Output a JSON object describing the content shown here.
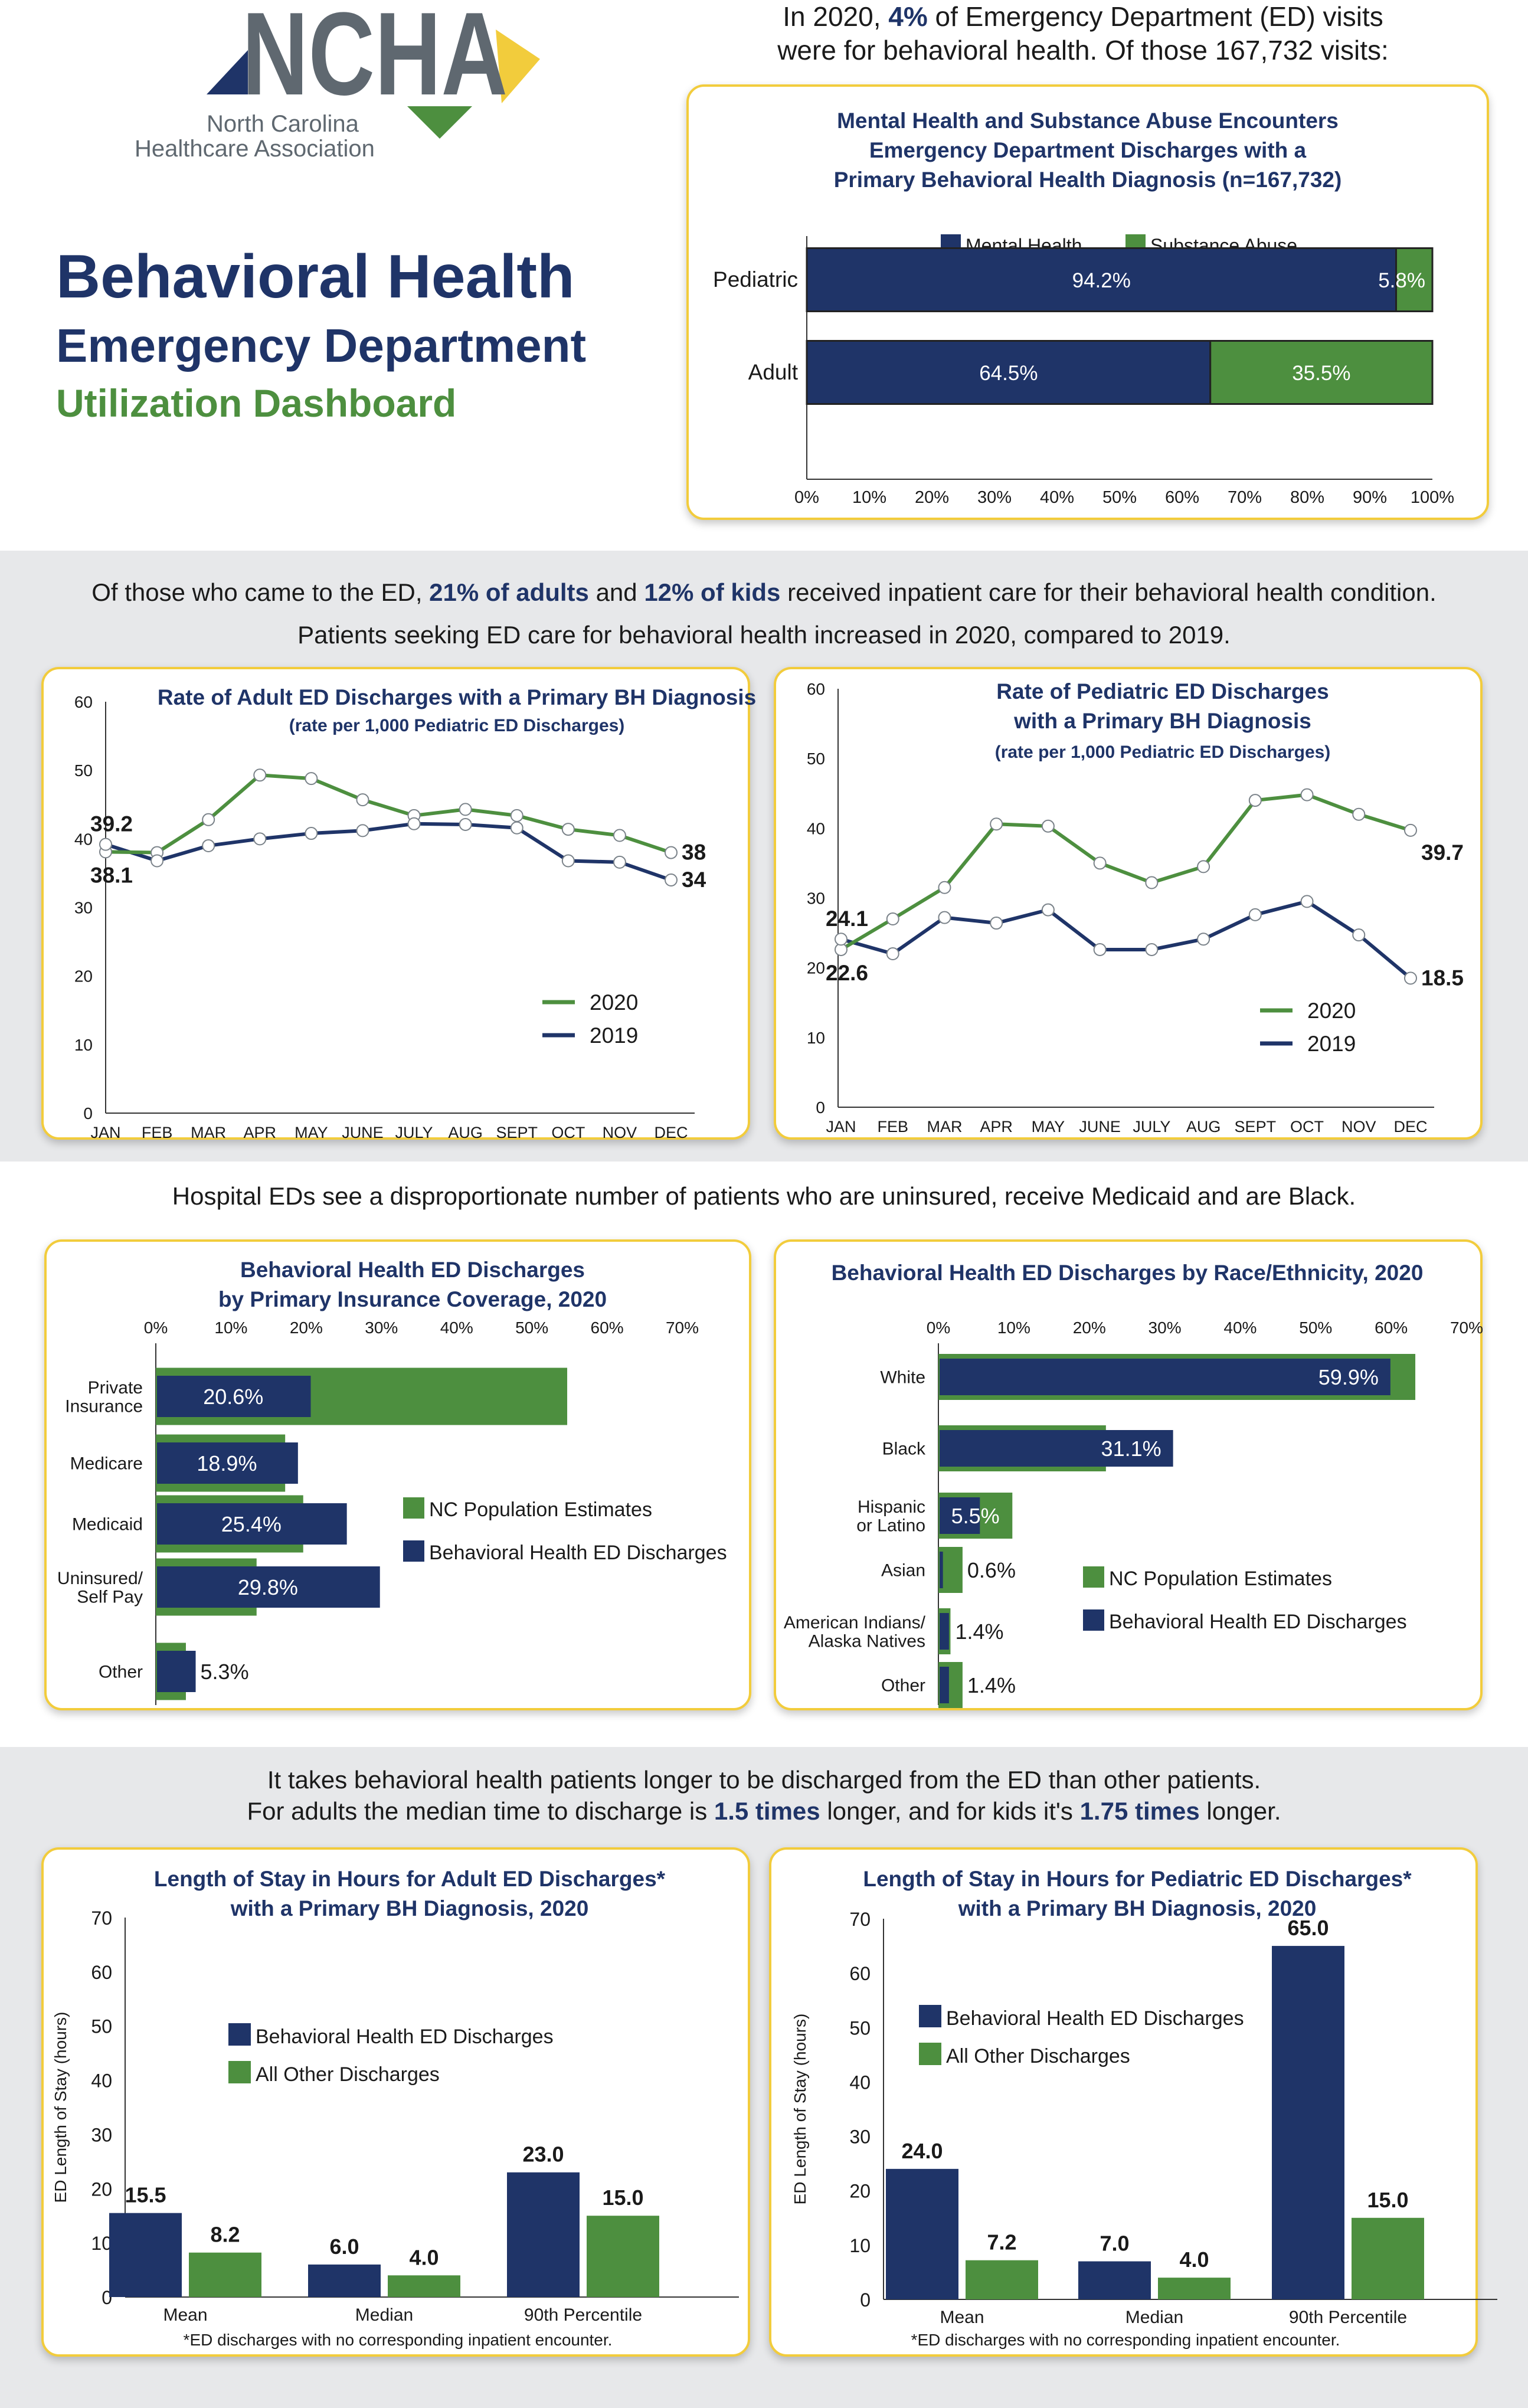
{
  "header": {
    "logo_text": "NCHA",
    "logo_sub1": "North Carolina",
    "logo_sub2": "Healthcare Association",
    "title1": "Behavioral Health",
    "title2": "Emergency Department",
    "title3": "Utilization Dashboard",
    "intro_pre": "In 2020,",
    "intro_pct": "4%",
    "intro_post": "of Emergency Department (ED) visits",
    "intro_line2": "were for behavioral health. Of those 167,732 visits:"
  },
  "section2": {
    "pre": "Of those who came to the ED,",
    "adults": "21% of adults",
    "mid": "and",
    "kids": "12% of kids",
    "post": "received inpatient care for their behavioral health condition.",
    "line2": "Patients seeking ED care for behavioral health increased in 2020, compared to 2019."
  },
  "section3": {
    "line1": "Hospital EDs see a disproportionate number of patients who are uninsured, receive Medicaid and are Black."
  },
  "section4": {
    "line1": "It takes behavioral health patients longer  to be discharged from the ED than other patients.",
    "pre": "For adults the median time to discharge is",
    "adult_x": "1.5 times",
    "mid": "longer, and for kids it's",
    "kid_x": "1.75 times",
    "post": "longer."
  },
  "colors": {
    "navy": "#1f3468",
    "green": "#4d8f3f",
    "gold": "#f2cc3c"
  },
  "chart_data": [
    {
      "id": "encounters",
      "type": "bar",
      "orientation": "horizontal-stacked",
      "title": [
        "Mental Health and Substance Abuse Encounters",
        "Emergency Department Discharges with a",
        "Primary Behavioral Health Diagnosis (n=167,732)"
      ],
      "categories": [
        "Pediatric",
        "Adult"
      ],
      "series": [
        {
          "name": "Mental Health",
          "values": [
            94.2,
            64.5
          ],
          "labels": [
            "94.2%",
            "64.5%"
          ]
        },
        {
          "name": "Substance Abuse",
          "values": [
            5.8,
            35.5
          ],
          "labels": [
            "5.8%",
            "35.5%"
          ]
        }
      ],
      "xticks": [
        "0%",
        "10%",
        "20%",
        "30%",
        "40%",
        "50%",
        "60%",
        "70%",
        "80%",
        "90%",
        "100%"
      ],
      "xlim": [
        0,
        100
      ],
      "legend": "top"
    },
    {
      "id": "adult_rate",
      "type": "line",
      "title": [
        "Rate of Adult ED Discharges with a Primary BH Diagnosis",
        "(rate per 1,000 Pediatric ED Discharges)"
      ],
      "categories": [
        "JAN",
        "FEB",
        "MAR",
        "APR",
        "MAY",
        "JUNE",
        "JULY",
        "AUG",
        "SEPT",
        "OCT",
        "NOV",
        "DEC"
      ],
      "series": [
        {
          "name": "2020",
          "values": [
            38.1,
            38.0,
            42.8,
            49.3,
            48.8,
            45.7,
            43.4,
            44.3,
            43.4,
            41.4,
            40.5,
            38.0
          ]
        },
        {
          "name": "2019",
          "values": [
            39.2,
            36.8,
            39.0,
            40.0,
            40.8,
            41.2,
            42.2,
            42.1,
            41.6,
            36.8,
            36.6,
            34.0
          ]
        }
      ],
      "data_labels": [
        {
          "text": "39.2",
          "series": "2019",
          "index": 0,
          "pos": "above-left"
        },
        {
          "text": "38.1",
          "series": "2020",
          "index": 0,
          "pos": "below-left"
        },
        {
          "text": "38",
          "series": "2020",
          "index": 11,
          "pos": "right"
        },
        {
          "text": "34",
          "series": "2019",
          "index": 11,
          "pos": "right"
        }
      ],
      "yticks": [
        "0",
        "10",
        "20",
        "30",
        "40",
        "50",
        "60"
      ],
      "ylim": [
        0,
        60
      ],
      "legend": "bottom-right"
    },
    {
      "id": "ped_rate",
      "type": "line",
      "title": [
        "Rate of Pediatric ED Discharges",
        "with a Primary BH Diagnosis",
        "(rate per 1,000 Pediatric ED Discharges)"
      ],
      "categories": [
        "JAN",
        "FEB",
        "MAR",
        "APR",
        "MAY",
        "JUNE",
        "JULY",
        "AUG",
        "SEPT",
        "OCT",
        "NOV",
        "DEC"
      ],
      "series": [
        {
          "name": "2020",
          "values": [
            22.6,
            27.0,
            31.5,
            40.6,
            40.3,
            35.0,
            32.2,
            34.5,
            44.0,
            44.8,
            42.0,
            39.7
          ]
        },
        {
          "name": "2019",
          "values": [
            24.1,
            22.0,
            27.2,
            26.4,
            28.3,
            22.6,
            22.6,
            24.1,
            27.6,
            29.5,
            24.7,
            18.5
          ]
        }
      ],
      "data_labels": [
        {
          "text": "24.1",
          "series": "2019",
          "index": 0,
          "pos": "above-left"
        },
        {
          "text": "22.6",
          "series": "2020",
          "index": 0,
          "pos": "below-left"
        },
        {
          "text": "39.7",
          "series": "2020",
          "index": 11,
          "pos": "below-right"
        },
        {
          "text": "18.5",
          "series": "2019",
          "index": 11,
          "pos": "right"
        }
      ],
      "yticks": [
        "0",
        "10",
        "20",
        "30",
        "40",
        "50",
        "60"
      ],
      "ylim": [
        0,
        60
      ],
      "legend": "bottom-right"
    },
    {
      "id": "insurance",
      "type": "bar",
      "orientation": "horizontal-overlay",
      "title": [
        "Behavioral Health ED Discharges",
        "by Primary Insurance Coverage, 2020"
      ],
      "categories": [
        [
          "Private",
          "Insurance"
        ],
        [
          "Medicare"
        ],
        [
          "Medicaid"
        ],
        [
          "Uninsured/",
          "Self Pay"
        ],
        [
          "Other"
        ]
      ],
      "series": [
        {
          "name": "NC Population Estimates",
          "values": [
            54.7,
            17.2,
            19.6,
            13.4,
            4.0
          ]
        },
        {
          "name": "Behavioral Health ED Discharges",
          "values": [
            20.6,
            18.9,
            25.4,
            29.8,
            5.3
          ],
          "labels": [
            "20.6%",
            "18.9%",
            "25.4%",
            "29.8%",
            "5.3%"
          ]
        }
      ],
      "xticks": [
        "0%",
        "10%",
        "20%",
        "30%",
        "40%",
        "50%",
        "60%",
        "70%"
      ],
      "xlim": [
        0,
        70
      ],
      "legend": "right"
    },
    {
      "id": "race",
      "type": "bar",
      "orientation": "horizontal-overlay",
      "title": [
        "Behavioral Health ED Discharges by Race/Ethnicity, 2020"
      ],
      "categories": [
        [
          "White"
        ],
        [
          "Black"
        ],
        [
          "Hispanic",
          "or Latino"
        ],
        [
          "Asian"
        ],
        [
          "American Indians/",
          "Alaska Natives"
        ],
        [
          "Other"
        ]
      ],
      "series": [
        {
          "name": "NC Population Estimates",
          "values": [
            63.2,
            22.2,
            9.8,
            3.2,
            1.6,
            3.2
          ]
        },
        {
          "name": "Behavioral Health ED Discharges",
          "values": [
            59.9,
            31.1,
            5.5,
            0.6,
            1.4,
            1.4
          ],
          "labels": [
            "59.9%",
            "31.1%",
            "5.5%",
            "0.6%",
            "1.4%",
            "1.4%"
          ]
        }
      ],
      "xticks": [
        "0%",
        "10%",
        "20%",
        "30%",
        "40%",
        "50%",
        "60%",
        "70%"
      ],
      "xlim": [
        0,
        70
      ],
      "legend": "right"
    },
    {
      "id": "los_adult",
      "type": "bar",
      "title": [
        "Length of Stay in Hours for Adult ED Discharges*",
        "with a Primary BH Diagnosis, 2020"
      ],
      "categories": [
        "Mean",
        "Median",
        "90th Percentile"
      ],
      "series": [
        {
          "name": "Behavioral Health ED Discharges",
          "values": [
            15.5,
            6.0,
            23.0
          ],
          "labels": [
            "15.5",
            "6.0",
            "23.0"
          ]
        },
        {
          "name": "All Other Discharges",
          "values": [
            8.2,
            4.0,
            15.0
          ],
          "labels": [
            "8.2",
            "4.0",
            "15.0"
          ]
        }
      ],
      "ylabel": "ED Length of Stay (hours)",
      "yticks": [
        "0",
        "10",
        "20",
        "30",
        "40",
        "50",
        "60",
        "70"
      ],
      "ylim": [
        0,
        70
      ],
      "footnote": "*ED discharges with no corresponding inpatient encounter.",
      "legend": "top-left"
    },
    {
      "id": "los_ped",
      "type": "bar",
      "title": [
        "Length of Stay in Hours for Pediatric ED Discharges*",
        "with a Primary BH Diagnosis, 2020"
      ],
      "categories": [
        "Mean",
        "Median",
        "90th Percentile"
      ],
      "series": [
        {
          "name": "Behavioral Health ED Discharges",
          "values": [
            24.0,
            7.0,
            65.0
          ],
          "labels": [
            "24.0",
            "7.0",
            "65.0"
          ]
        },
        {
          "name": "All Other Discharges",
          "values": [
            7.2,
            4.0,
            15.0
          ],
          "labels": [
            "7.2",
            "4.0",
            "15.0"
          ]
        }
      ],
      "ylabel": "ED Length of Stay (hours)",
      "yticks": [
        "0",
        "10",
        "20",
        "30",
        "40",
        "50",
        "60",
        "70"
      ],
      "ylim": [
        0,
        70
      ],
      "footnote": "*ED discharges with no corresponding inpatient encounter.",
      "legend": "top-left"
    }
  ]
}
